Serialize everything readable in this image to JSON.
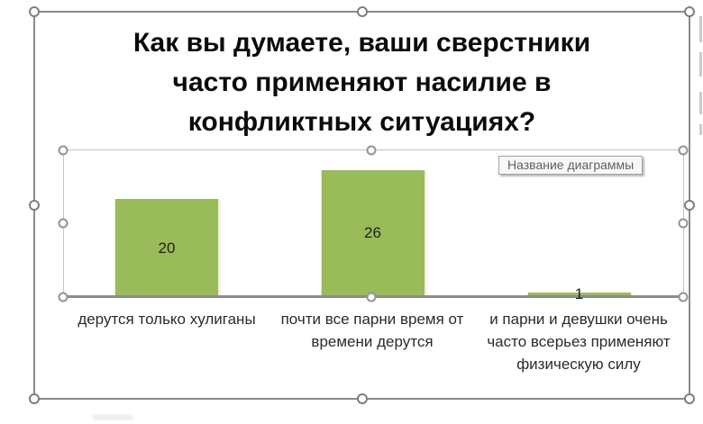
{
  "chart_data": {
    "type": "bar",
    "title": "Как вы думаете, ваши сверстники часто применяют насилие в конфликтных ситуациях?",
    "title_lines": [
      "Как вы думаете, ваши сверстники",
      "часто применяют насилие в",
      "конфликтных ситуациях?"
    ],
    "categories": [
      "дерутся только хулиганы",
      "почти все парни время от\nвремени дерутся",
      "и парни и девушки очень\nчасто всерьез применяют\nфизическую силу"
    ],
    "values": [
      20,
      26,
      1
    ],
    "data_labels": [
      "20",
      "26",
      "1"
    ],
    "ylim": [
      0,
      30
    ],
    "xlabel": "",
    "ylabel": "",
    "legend": "none",
    "grid": false,
    "bar_color": "#9abb59",
    "axis_color": "#8c8c8c",
    "label_color": "#1f1f1f"
  },
  "tooltip": {
    "text": "Название диаграммы"
  },
  "selection": {
    "handle_fill": "#ffffff",
    "outer_handle_border": "#7e7e7e",
    "inner_handle_border": "#939393"
  }
}
